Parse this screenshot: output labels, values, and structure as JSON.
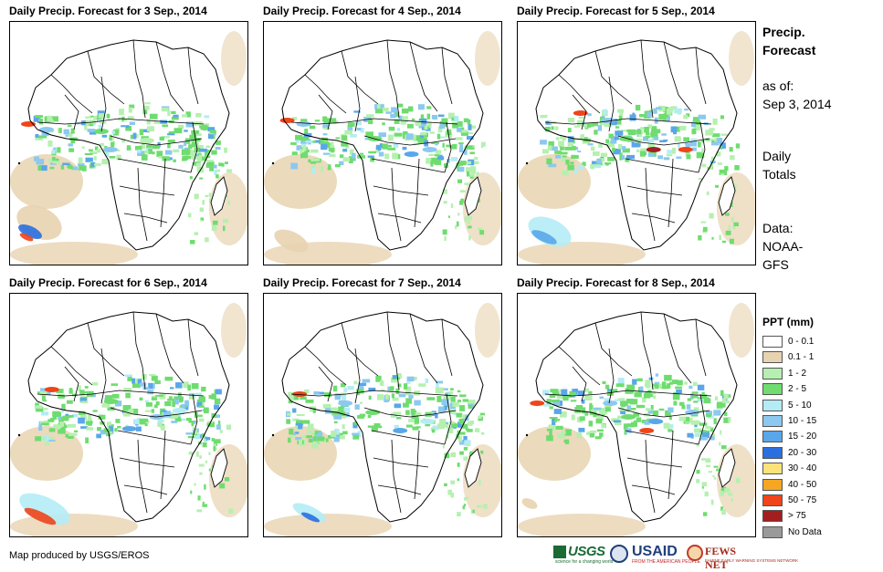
{
  "panels": [
    {
      "title": "Daily Precip. Forecast for 3 Sep., 2014"
    },
    {
      "title": "Daily Precip. Forecast for 4 Sep., 2014"
    },
    {
      "title": "Daily Precip. Forecast for 5 Sep., 2014"
    },
    {
      "title": "Daily Precip. Forecast for 6 Sep., 2014"
    },
    {
      "title": "Daily Precip. Forecast for 7 Sep., 2014"
    },
    {
      "title": "Daily Precip. Forecast for 8 Sep., 2014"
    }
  ],
  "side": {
    "title_line1": "Precip.",
    "title_line2": "Forecast",
    "asof_label": "as of:",
    "asof_date": "Sep 3, 2014",
    "totals_line1": "Daily",
    "totals_line2": "Totals",
    "data_line1": "Data:",
    "data_line2": "NOAA-",
    "data_line3": "GFS"
  },
  "legend": {
    "title": "PPT (mm)",
    "items": [
      {
        "label": "0 - 0.1",
        "color": "#ffffff"
      },
      {
        "label": "0.1 - 1",
        "color": "#e8d3b0"
      },
      {
        "label": "1 - 2",
        "color": "#b6f0b0"
      },
      {
        "label": "2 - 5",
        "color": "#6fdc6f"
      },
      {
        "label": "5 - 10",
        "color": "#b4ecf5"
      },
      {
        "label": "10 - 15",
        "color": "#8cc8f0"
      },
      {
        "label": "15 - 20",
        "color": "#5aa6ea"
      },
      {
        "label": "20 - 30",
        "color": "#2a6fe0"
      },
      {
        "label": "30 - 40",
        "color": "#fbe27a"
      },
      {
        "label": "40 - 50",
        "color": "#f5a623"
      },
      {
        "label": "50 - 75",
        "color": "#f0441a"
      },
      {
        "label": "> 75",
        "color": "#a31f1f"
      },
      {
        "label": "No Data",
        "color": "#9a9a9a"
      }
    ]
  },
  "footer": {
    "credit": "Map produced by USGS/EROS"
  },
  "logos": {
    "usgs": "USGS",
    "usgs_tagline": "science for a changing world",
    "usaid": "USAID",
    "usaid_tagline": "FROM THE AMERICAN PEOPLE",
    "fews": "FEWS NET",
    "fews_tagline": "FAMINE EARLY WARNING SYSTEMS NETWORK"
  }
}
